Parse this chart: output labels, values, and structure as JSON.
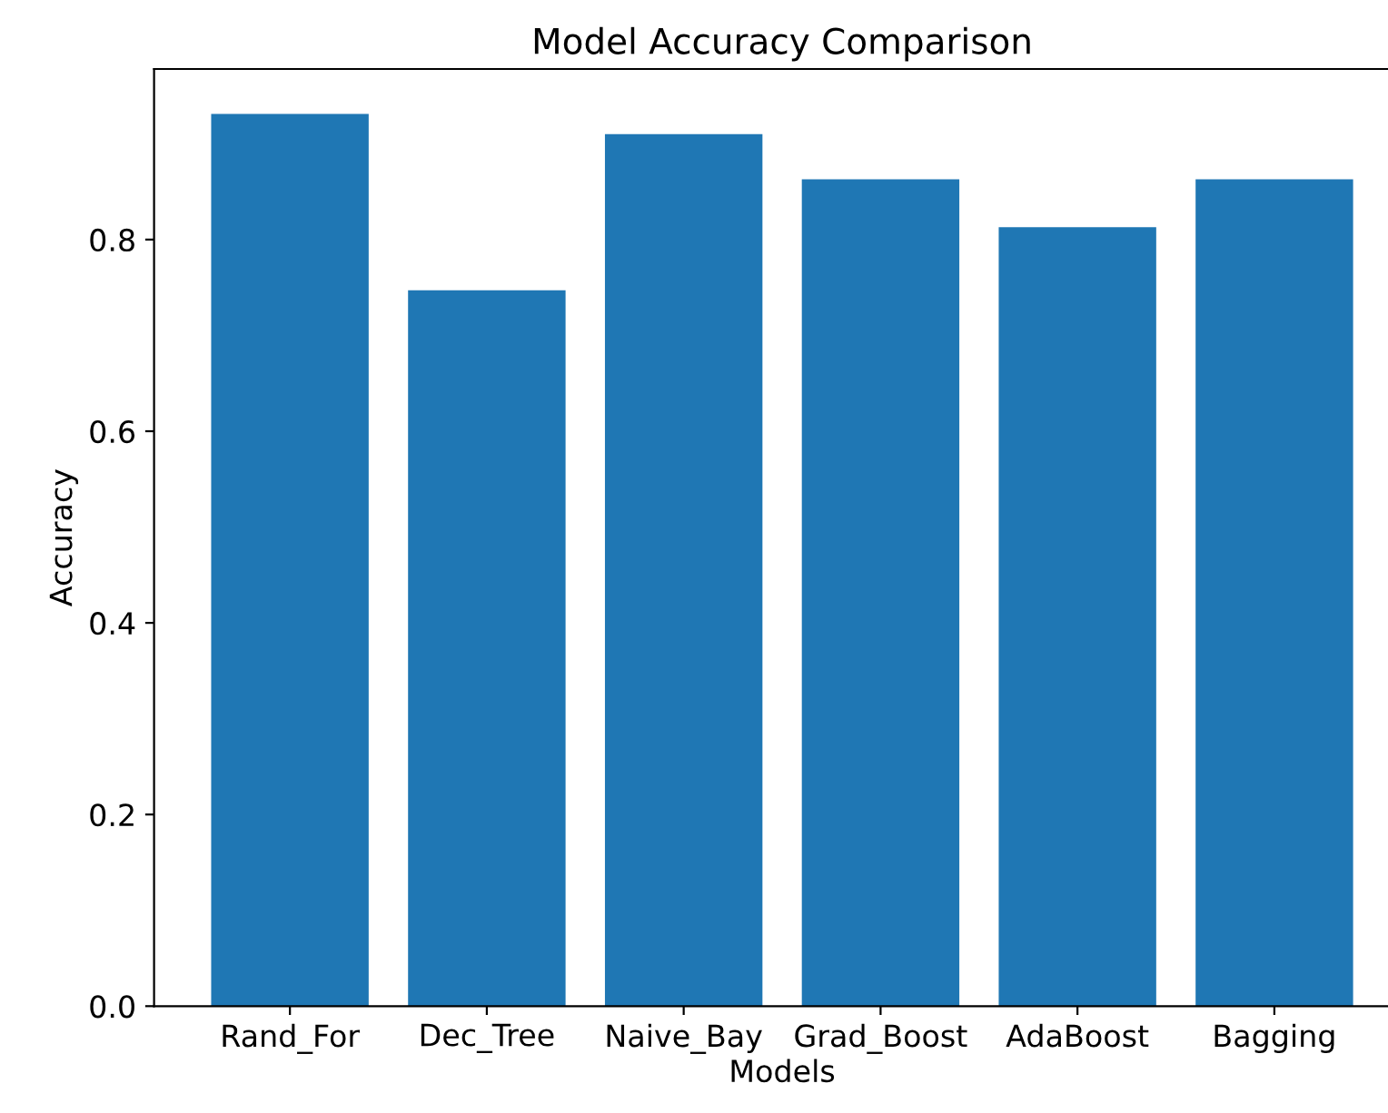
{
  "chart_data": {
    "type": "bar",
    "title": "Model Accuracy Comparison",
    "xlabel": "Models",
    "ylabel": "Accuracy",
    "categories": [
      "Rand_For",
      "Dec_Tree",
      "Naive_Bay",
      "Grad_Boost",
      "AdaBoost",
      "Bagging"
    ],
    "values": [
      0.931,
      0.747,
      0.91,
      0.863,
      0.813,
      0.863
    ],
    "color": "#1f77b4",
    "ylim": [
      0,
      0.978
    ],
    "yticks": [
      {
        "value": 0,
        "label": "0.0"
      },
      0.2,
      0.4,
      0.6,
      0.8
    ],
    "grid": false,
    "legend": false
  }
}
